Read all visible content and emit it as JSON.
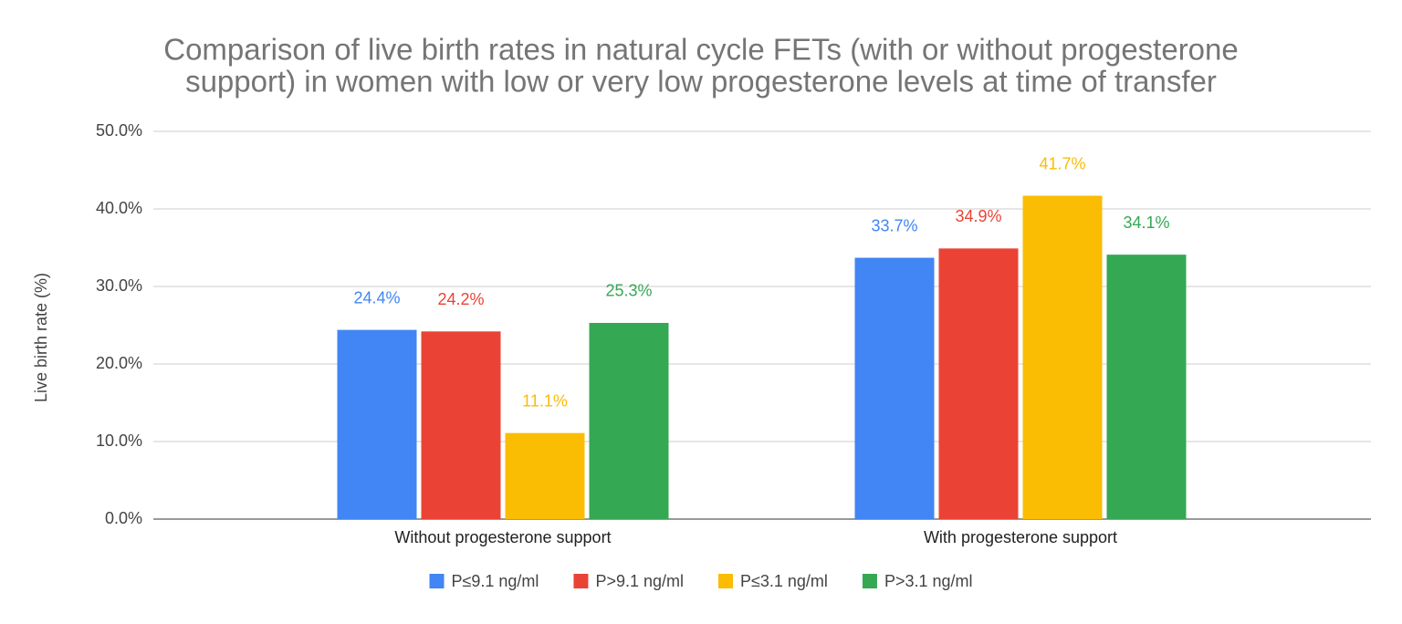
{
  "chart_data": {
    "type": "bar",
    "title": [
      "Comparison of live birth rates in natural cycle FETs (with or without progesterone",
      "support) in women with low or very low progesterone levels at time of transfer"
    ],
    "y_label": "Live birth rate (%)",
    "categories": [
      "Without progesterone support",
      "With progesterone support"
    ],
    "series": [
      {
        "name": "P≤9.1 ng/ml",
        "color": "#4285f4",
        "values": [
          24.4,
          33.7
        ],
        "value_labels": [
          "24.4%",
          "33.7%"
        ]
      },
      {
        "name": "P>9.1 ng/ml",
        "color": "#ea4335",
        "values": [
          24.2,
          34.9
        ],
        "value_labels": [
          "24.2%",
          "34.9%"
        ]
      },
      {
        "name": "P≤3.1 ng/ml",
        "color": "#fbbc04",
        "values": [
          11.1,
          41.7
        ],
        "value_labels": [
          "11.1%",
          "41.7%"
        ]
      },
      {
        "name": "P>3.1 ng/ml",
        "color": "#34a853",
        "values": [
          25.3,
          34.1
        ],
        "value_labels": [
          "25.3%",
          "34.1%"
        ]
      }
    ],
    "ylim": [
      0,
      50
    ],
    "yticks": [
      {
        "value": 0,
        "label": "0.0%"
      },
      {
        "value": 10,
        "label": "10.0%"
      },
      {
        "value": 20,
        "label": "20.0%"
      },
      {
        "value": 30,
        "label": "30.0%"
      },
      {
        "value": 40,
        "label": "40.0%"
      },
      {
        "value": 50,
        "label": "50.0%"
      }
    ],
    "grid": true,
    "legend": "bottom"
  }
}
